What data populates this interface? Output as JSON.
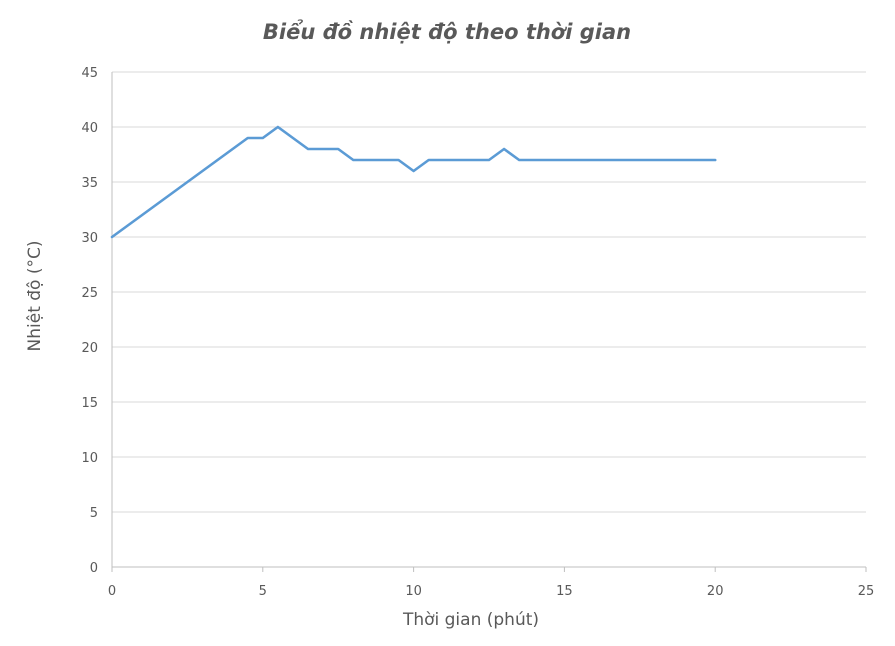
{
  "chart_data": {
    "type": "line",
    "title": "Biểu đồ nhiệt độ theo thời gian",
    "xlabel": "Thời gian (phút)",
    "ylabel": "Nhiệt độ (°C)",
    "xlim": [
      0,
      25
    ],
    "ylim": [
      0,
      45
    ],
    "xticks": [
      0,
      5,
      10,
      15,
      20,
      25
    ],
    "yticks": [
      0,
      5,
      10,
      15,
      20,
      25,
      30,
      35,
      40,
      45
    ],
    "grid": "horizontal",
    "legend": "none",
    "series": [
      {
        "color": "#5b9bd5",
        "x": [
          0,
          0.5,
          1,
          1.5,
          2,
          2.5,
          3,
          3.5,
          4,
          4.5,
          5,
          5.5,
          6,
          6.5,
          7,
          7.5,
          8,
          8.5,
          9,
          9.5,
          10,
          10.5,
          11,
          11.5,
          12,
          12.5,
          13,
          13.5,
          14,
          14.5,
          15,
          15.5,
          16,
          16.5,
          17,
          17.5,
          18,
          18.5,
          19,
          19.5,
          20
        ],
        "y": [
          30,
          31,
          32,
          33,
          34,
          35,
          36,
          37,
          38,
          39,
          39,
          40,
          39,
          38,
          38,
          38,
          37,
          37,
          37,
          37,
          36,
          37,
          37,
          37,
          37,
          37,
          38,
          37,
          37,
          37,
          37,
          37,
          37,
          37,
          37,
          37,
          37,
          37,
          37,
          37,
          37
        ]
      }
    ]
  }
}
